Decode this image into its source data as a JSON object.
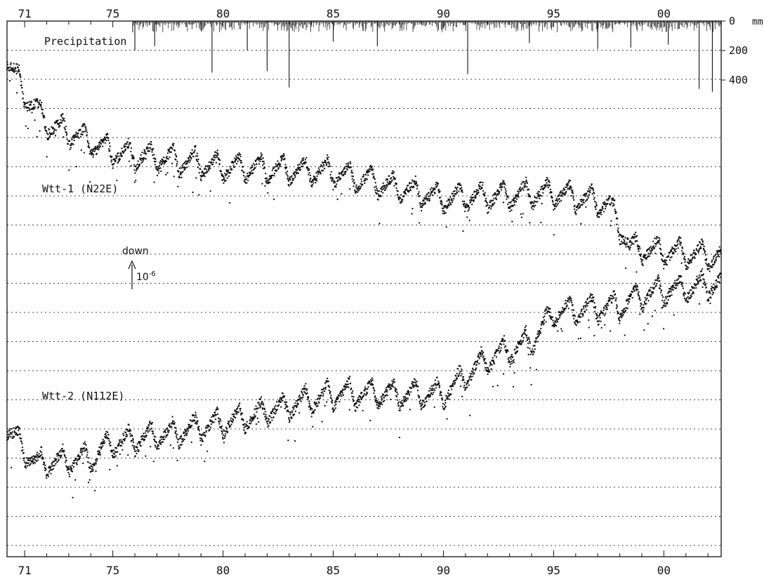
{
  "chart_data": {
    "type": "scatter",
    "x_axis": {
      "ticks": [
        71,
        75,
        80,
        85,
        90,
        95,
        0
      ],
      "tick_labels_top": [
        "71",
        "75",
        "80",
        "85",
        "90",
        "95",
        "00"
      ],
      "tick_labels_bottom": [
        "71",
        "75",
        "80",
        "85",
        "90",
        "95",
        "00"
      ],
      "range_years": [
        1970.2,
        2002.6
      ]
    },
    "grid": "horizontal dotted",
    "precipitation": {
      "label": "Precipitation",
      "axis_ticks": [
        0,
        200,
        400
      ],
      "axis_tick_labels": [
        "0",
        "200",
        "400"
      ],
      "unit": "mm",
      "range_years": [
        1975.9,
        2002.6
      ],
      "peak_events": [
        {
          "year": 1976.0,
          "mm": 200
        },
        {
          "year": 1976.9,
          "mm": 170
        },
        {
          "year": 1979.5,
          "mm": 350
        },
        {
          "year": 1981.1,
          "mm": 200
        },
        {
          "year": 1982.0,
          "mm": 340
        },
        {
          "year": 1983.0,
          "mm": 450
        },
        {
          "year": 1985.0,
          "mm": 140
        },
        {
          "year": 1987.0,
          "mm": 170
        },
        {
          "year": 1991.1,
          "mm": 360
        },
        {
          "year": 1993.9,
          "mm": 150
        },
        {
          "year": 1997.0,
          "mm": 190
        },
        {
          "year": 1998.5,
          "mm": 180
        },
        {
          "year": 2000.2,
          "mm": 160
        },
        {
          "year": 2001.6,
          "mm": 460
        },
        {
          "year": 2002.2,
          "mm": 480
        }
      ]
    },
    "series": [
      {
        "name": "Wtt-1 (N22E)",
        "trend": [
          {
            "x": 1970.2,
            "y": 1.3
          },
          {
            "x": 1971.0,
            "y": 2.5
          },
          {
            "x": 1972.0,
            "y": 3.5
          },
          {
            "x": 1975.0,
            "y": 4.5
          },
          {
            "x": 1980.0,
            "y": 5.0
          },
          {
            "x": 1985.0,
            "y": 5.2
          },
          {
            "x": 1990.0,
            "y": 6.1
          },
          {
            "x": 1995.0,
            "y": 5.9
          },
          {
            "x": 1997.5,
            "y": 6.3
          },
          {
            "x": 1998.5,
            "y": 7.8
          },
          {
            "x": 2002.6,
            "y": 8.1
          }
        ],
        "seasonal_amplitude": 0.9
      },
      {
        "name": "Wtt-2 (N112E)",
        "trend": [
          {
            "x": 1970.2,
            "y": 14.0
          },
          {
            "x": 1971.5,
            "y": 15.2
          },
          {
            "x": 1974.0,
            "y": 15.0
          },
          {
            "x": 1975.0,
            "y": 14.5
          },
          {
            "x": 1980.0,
            "y": 13.8
          },
          {
            "x": 1983.0,
            "y": 13.2
          },
          {
            "x": 1985.0,
            "y": 12.8
          },
          {
            "x": 1990.0,
            "y": 12.8
          },
          {
            "x": 1992.0,
            "y": 11.6
          },
          {
            "x": 1994.0,
            "y": 11.0
          },
          {
            "x": 1995.0,
            "y": 10.0
          },
          {
            "x": 1998.0,
            "y": 9.8
          },
          {
            "x": 1999.0,
            "y": 9.4
          },
          {
            "x": 2002.6,
            "y": 9.0
          }
        ],
        "seasonal_amplitude": 0.9
      }
    ],
    "annotations": {
      "arrow_label": "down",
      "scale_base": "10",
      "scale_exponent": "-6"
    }
  }
}
